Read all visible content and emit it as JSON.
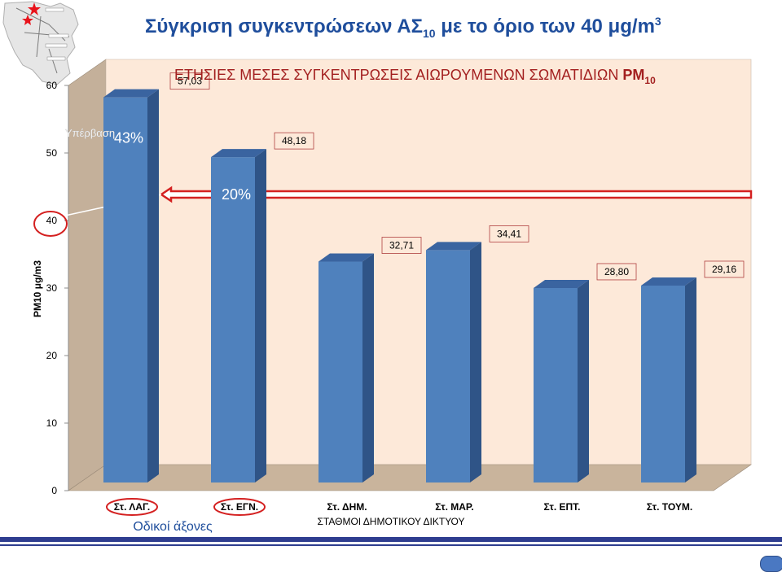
{
  "slide": {
    "title_main": "Σύγκριση συγκεντρώσεων ΑΣ",
    "title_sub": "10",
    "title_mid": " με το όριο των 40 μg/m",
    "title_sup": "3"
  },
  "colors": {
    "title": "#1f4e9c",
    "chart_title": "#a31f1f",
    "bar_front": "#4f81bd",
    "bar_side": "#2f5487",
    "bar_top": "#3a64a0",
    "back_wall": "#fde9d9",
    "side_wall": "#c4b09a",
    "floor": "#c9b49c",
    "limit_line": "#d42020",
    "roads": "#1f4e9c"
  },
  "chart_data": {
    "type": "bar",
    "title": "ΕΤΗΣΙΕΣ ΜΕΣΕΣ ΣΥΓΚΕΝΤΡΩΣΕΙΣ ΑΙΩΡΟΥΜΕΝΩΝ ΣΩΜΑΤΙΔΙΩΝ",
    "title_suffix": "PM",
    "title_suffix_sub": "10",
    "categories": [
      "Στ. ΛΑΓ.",
      "Στ. ΕΓΝ.",
      "Στ. ΔΗΜ.",
      "Στ. ΜΑΡ.",
      "Στ. ΕΠΤ.",
      "Στ. ΤΟΥΜ."
    ],
    "values": [
      57.03,
      48.18,
      32.71,
      34.41,
      28.8,
      29.16
    ],
    "data_labels": [
      "57,03",
      "48,18",
      "32,71",
      "34,41",
      "28,80",
      "29,16"
    ],
    "xlabel": "ΣΤΑΘΜΟΙ ΔΗΜΟΤΙΚΟΥ ΔΙΚΤΥΟΥ",
    "ylabel": "PM10 μg/m3",
    "ylim": [
      0,
      60
    ],
    "yticks": [
      0,
      10,
      20,
      30,
      40,
      50,
      60
    ],
    "limit_value": 40,
    "grid": false,
    "style": "3d",
    "exceedance_label": "Υπέρβαση",
    "exceedances": [
      {
        "category": "Στ. ΛΑΓ.",
        "text": "43%"
      },
      {
        "category": "Στ. ΕΓΝ.",
        "text": "20%"
      }
    ],
    "road_axes_label": "Οδικοί άξονες",
    "highlighted_categories": [
      "Στ. ΛΑΓ.",
      "Στ. ΕΓΝ."
    ]
  }
}
